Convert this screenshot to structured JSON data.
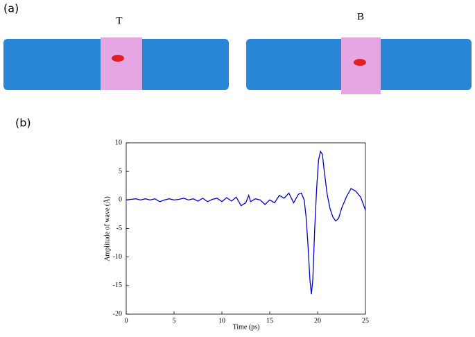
{
  "panel_a": {
    "label": "(a)",
    "left_title": "T",
    "right_title": "B"
  },
  "panel_b": {
    "label": "(b)"
  },
  "chart_data": {
    "type": "line",
    "xlabel": "Time (ps)",
    "ylabel": "Amplitude of wave (Å)",
    "x": [
      0,
      0.5,
      1,
      1.5,
      2,
      2.5,
      3,
      3.5,
      4,
      4.5,
      5,
      5.5,
      6,
      6.5,
      7,
      7.5,
      8,
      8.5,
      9,
      9.5,
      10,
      10.5,
      11,
      11.5,
      12,
      12.5,
      12.8,
      13,
      13.5,
      14,
      14.5,
      15,
      15.5,
      16,
      16.5,
      17,
      17.5,
      18,
      18.3,
      18.6,
      18.8,
      19,
      19.2,
      19.35,
      19.5,
      19.7,
      19.9,
      20.1,
      20.3,
      20.5,
      20.7,
      21,
      21.3,
      21.6,
      21.9,
      22.2,
      22.5,
      23,
      23.5,
      24,
      24.5,
      25
    ],
    "series": [
      {
        "color": "#0000c8",
        "values": [
          0,
          0.1,
          0.2,
          0,
          0.2,
          0,
          0.2,
          -0.3,
          0,
          0.2,
          0,
          0.1,
          0.3,
          0,
          0.2,
          -0.2,
          0.3,
          -0.3,
          0.1,
          0.3,
          -0.3,
          0.4,
          -0.2,
          0.5,
          -1,
          -0.5,
          0.8,
          -0.3,
          0.2,
          0,
          -0.8,
          0,
          -0.5,
          0.8,
          0.3,
          1.2,
          -0.5,
          1,
          1.2,
          0,
          -3,
          -8,
          -14,
          -16.5,
          -14,
          -5,
          2,
          7,
          8.5,
          8,
          5,
          1,
          -1.5,
          -3,
          -3.7,
          -3.2,
          -1.5,
          0.5,
          2,
          1.5,
          0.5,
          -1.8
        ]
      }
    ],
    "xlim": [
      0,
      25
    ],
    "ylim": [
      -20,
      10
    ],
    "xticks": [
      0,
      5,
      10,
      15,
      20,
      25
    ],
    "yticks": [
      -20,
      -15,
      -10,
      -5,
      0,
      5,
      10
    ]
  }
}
